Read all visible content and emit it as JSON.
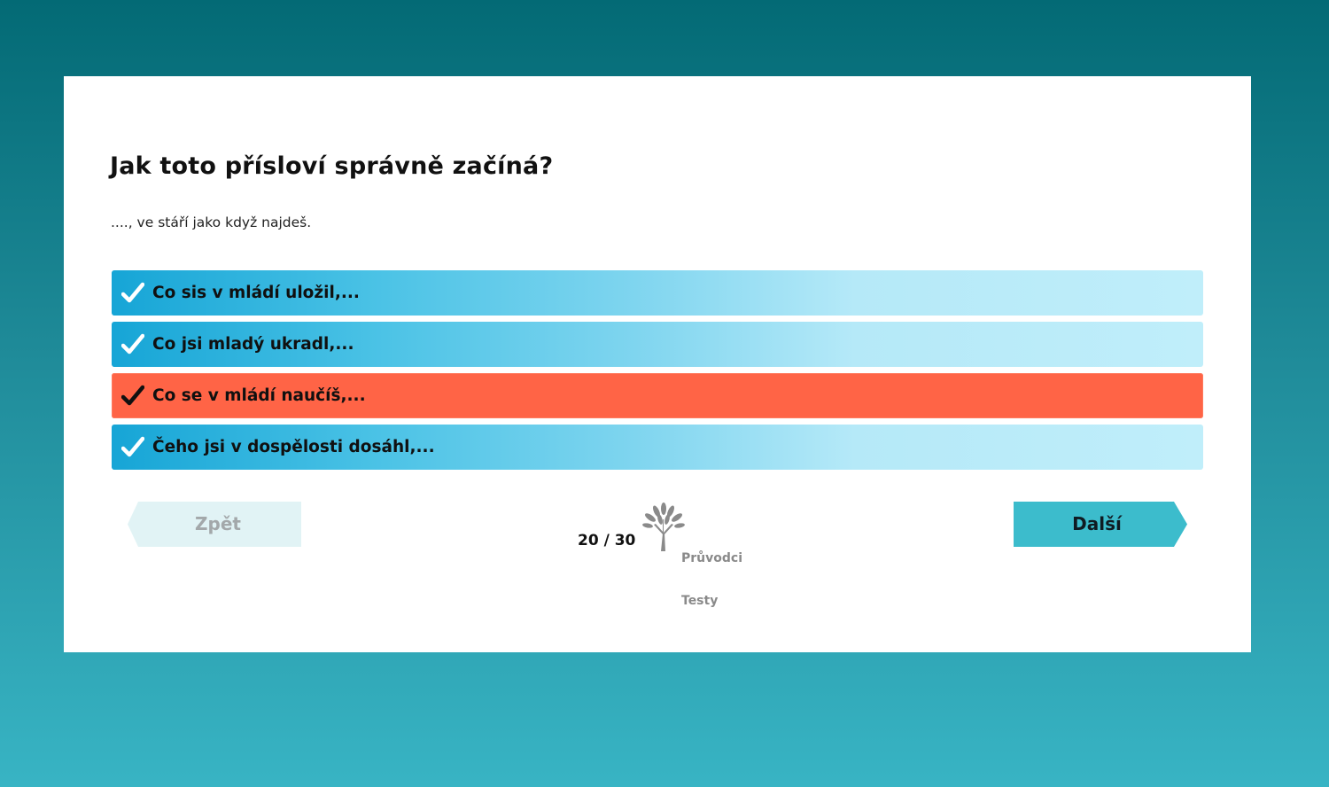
{
  "question": {
    "title": "Jak toto přísloví správně začíná?",
    "subtitle": "...., ve stáří jako když najdeš."
  },
  "answers": [
    {
      "label": "Co sis v mládí uložil,...",
      "selected": false
    },
    {
      "label": "Co jsi mladý ukradl,...",
      "selected": false
    },
    {
      "label": "Co se v mládí naučíš,...",
      "selected": true
    },
    {
      "label": "Čeho jsi v dospělosti dosáhl,...",
      "selected": false
    }
  ],
  "navigation": {
    "prev_label": "Zpět",
    "next_label": "Další",
    "progress": "20 / 30"
  },
  "logo": {
    "line1": "Průvodci",
    "line2": "Testy"
  },
  "icons": {
    "check": "check-icon",
    "logo": "tree-icon"
  },
  "colors": {
    "answer_gradient_start": "#16a5d6",
    "answer_gradient_end": "#c0eefa",
    "selected_answer": "#ff6446",
    "next_button": "#3cbccc",
    "prev_button": "#e1f3f5",
    "background_top": "#036a75",
    "background_bottom": "#38b4c4"
  }
}
